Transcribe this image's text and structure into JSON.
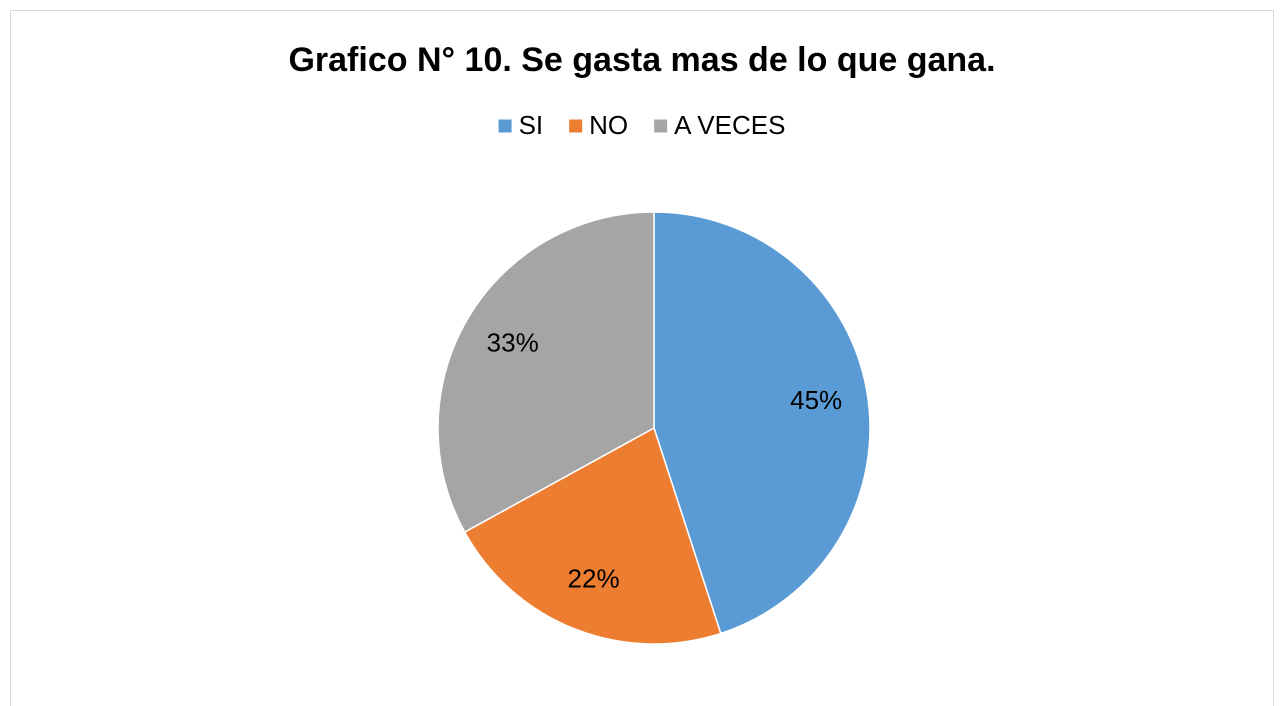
{
  "chart_data": {
    "type": "pie",
    "title": "Grafico N° 10. Se gasta mas de lo que gana.",
    "categories": [
      "SI",
      "NO",
      "A VECES"
    ],
    "values": [
      45,
      22,
      33
    ],
    "value_labels": [
      "45%",
      "22%",
      "33%"
    ],
    "colors": [
      "#5b9bd5",
      "#ed7d31",
      "#a5a5a5"
    ],
    "legend": "top"
  }
}
